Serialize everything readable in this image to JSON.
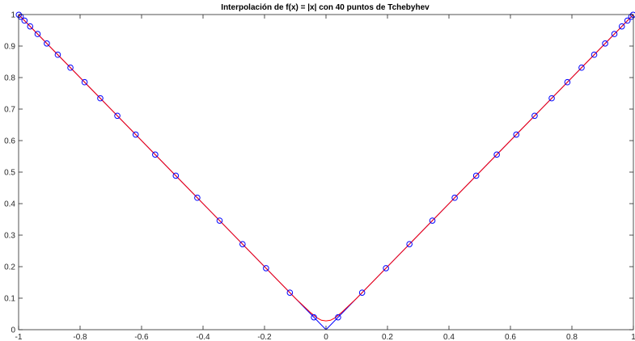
{
  "chart_data": {
    "type": "line",
    "title": "Interpolación de f(x) = |x| con 40 puntos de Tchebyhev",
    "xlabel": "",
    "ylabel": "",
    "xlim": [
      -1,
      1
    ],
    "ylim": [
      0,
      1
    ],
    "x_ticks": [
      "-1",
      "-0.8",
      "-0.6",
      "-0.4",
      "-0.2",
      "0",
      "0.2",
      "0.4",
      "0.6",
      "0.8",
      "1"
    ],
    "y_ticks": [
      "0",
      "0.1",
      "0.2",
      "0.3",
      "0.4",
      "0.5",
      "0.6",
      "0.7",
      "0.8",
      "0.9",
      "1"
    ],
    "grid": false,
    "legend": "none",
    "colors": {
      "function": "#0000ff",
      "interpolant": "#ff0000",
      "nodes": "#0000ff",
      "axes": "#262626"
    },
    "series": [
      {
        "kind": "line",
        "x": [
          -1,
          -0.5,
          -0.04,
          0,
          0.04,
          0.5,
          1
        ],
        "y": [
          1,
          0.5,
          0.04,
          0,
          0.04,
          0.5,
          1
        ]
      },
      {
        "kind": "line",
        "x": [
          -1,
          -0.5,
          -0.1,
          -0.05,
          -0.03,
          -0.015,
          0,
          0.015,
          0.03,
          0.05,
          0.1,
          0.5,
          1
        ],
        "y": [
          1,
          0.5,
          0.1,
          0.054,
          0.038,
          0.03,
          0.028,
          0.03,
          0.038,
          0.054,
          0.1,
          0.5,
          1
        ]
      },
      {
        "kind": "markers",
        "marker": "circle",
        "x": [
          -0.99923,
          -0.99307,
          -0.98079,
          -0.96246,
          -0.93819,
          -0.90814,
          -0.8725,
          -0.83147,
          -0.78531,
          -0.73432,
          -0.6788,
          -0.61909,
          -0.55557,
          -0.48862,
          -0.41866,
          -0.34611,
          -0.27144,
          -0.19509,
          -0.11754,
          -0.03926,
          0.03926,
          0.11754,
          0.19509,
          0.27144,
          0.34611,
          0.41866,
          0.48862,
          0.55557,
          0.61909,
          0.6788,
          0.73432,
          0.78531,
          0.83147,
          0.8725,
          0.90814,
          0.93819,
          0.96246,
          0.98079,
          0.99307,
          0.99923
        ],
        "y": [
          0.99923,
          0.99307,
          0.98079,
          0.96246,
          0.93819,
          0.90814,
          0.8725,
          0.83147,
          0.78531,
          0.73432,
          0.6788,
          0.61909,
          0.55557,
          0.48862,
          0.41866,
          0.34611,
          0.27144,
          0.19509,
          0.11754,
          0.03926,
          0.03926,
          0.11754,
          0.19509,
          0.27144,
          0.34611,
          0.41866,
          0.48862,
          0.55557,
          0.61909,
          0.6788,
          0.73432,
          0.78531,
          0.83147,
          0.8725,
          0.90814,
          0.93819,
          0.96246,
          0.98079,
          0.99307,
          0.99923
        ]
      }
    ]
  }
}
